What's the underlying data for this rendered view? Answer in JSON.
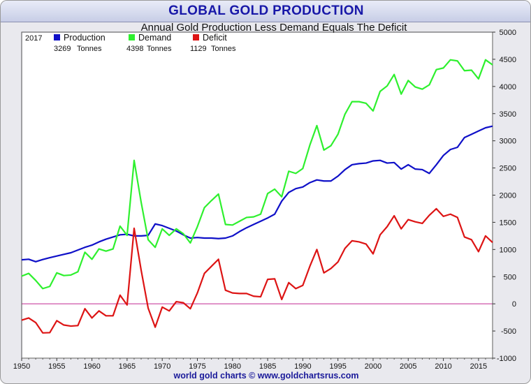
{
  "title": "GLOBAL GOLD PRODUCTION",
  "footer": "world gold charts © www.goldchartsrus.com",
  "chart_data": {
    "type": "line",
    "subtitle": "Annual Gold Production Less Demand Equals The Deficit",
    "legend": {
      "year": "2017",
      "entries": [
        {
          "name": "Production",
          "value": "3269",
          "unit": "Tonnes",
          "color": "#0f10c8"
        },
        {
          "name": "Demand",
          "value": "4398",
          "unit": "Tonnes",
          "color": "#2ef02e"
        },
        {
          "name": "Deficit",
          "value": "1129",
          "unit": "Tonnes",
          "color": "#dd1414"
        }
      ]
    },
    "xlim": [
      1950,
      2017
    ],
    "ylim": [
      -1000,
      5000
    ],
    "x_ticks": [
      "1950",
      "1955",
      "1960",
      "1965",
      "1970",
      "1975",
      "1980",
      "1985",
      "1990",
      "1995",
      "2000",
      "2005",
      "2010",
      "2015"
    ],
    "y_ticks": [
      "5000",
      "4500",
      "4000",
      "3500",
      "3000",
      "2500",
      "2000",
      "1500",
      "1000",
      "500",
      "0",
      "-500",
      "-1000"
    ],
    "zero_line_color": "#c02890",
    "x": [
      1950,
      1951,
      1952,
      1953,
      1954,
      1955,
      1956,
      1957,
      1958,
      1959,
      1960,
      1961,
      1962,
      1963,
      1964,
      1965,
      1966,
      1967,
      1968,
      1969,
      1970,
      1971,
      1972,
      1973,
      1974,
      1975,
      1976,
      1977,
      1978,
      1979,
      1980,
      1981,
      1982,
      1983,
      1984,
      1985,
      1986,
      1987,
      1988,
      1989,
      1990,
      1991,
      1992,
      1993,
      1994,
      1995,
      1996,
      1997,
      1998,
      1999,
      2000,
      2001,
      2002,
      2003,
      2004,
      2005,
      2006,
      2007,
      2008,
      2009,
      2010,
      2011,
      2012,
      2013,
      2014,
      2015,
      2016,
      2017
    ],
    "series": [
      {
        "name": "Production",
        "color": "#0f10c8",
        "values": [
          810,
          820,
          775,
          815,
          850,
          880,
          910,
          940,
          990,
          1040,
          1080,
          1140,
          1190,
          1230,
          1270,
          1280,
          1250,
          1250,
          1260,
          1470,
          1440,
          1390,
          1340,
          1270,
          1210,
          1220,
          1210,
          1210,
          1200,
          1210,
          1250,
          1330,
          1400,
          1460,
          1520,
          1580,
          1650,
          1890,
          2050,
          2120,
          2150,
          2230,
          2280,
          2260,
          2260,
          2350,
          2470,
          2560,
          2580,
          2590,
          2630,
          2640,
          2590,
          2600,
          2480,
          2560,
          2480,
          2470,
          2400,
          2560,
          2730,
          2840,
          2880,
          3060,
          3120,
          3180,
          3240,
          3269
        ]
      },
      {
        "name": "Demand",
        "color": "#2ef02e",
        "values": [
          510,
          560,
          430,
          280,
          320,
          570,
          520,
          530,
          590,
          950,
          820,
          1010,
          970,
          1010,
          1430,
          1260,
          2640,
          1870,
          1180,
          1040,
          1380,
          1260,
          1380,
          1290,
          1120,
          1420,
          1770,
          1900,
          2020,
          1460,
          1450,
          1520,
          1590,
          1600,
          1650,
          2030,
          2110,
          1970,
          2440,
          2400,
          2490,
          2920,
          3280,
          2830,
          2910,
          3120,
          3490,
          3720,
          3720,
          3690,
          3550,
          3910,
          4010,
          4220,
          3860,
          4110,
          3990,
          3950,
          4030,
          4310,
          4340,
          4490,
          4470,
          4290,
          4300,
          4140,
          4490,
          4398
        ]
      },
      {
        "name": "Deficit",
        "color": "#dd1414",
        "values": [
          -300,
          -260,
          -345,
          -535,
          -530,
          -310,
          -390,
          -410,
          -400,
          -90,
          -260,
          -130,
          -220,
          -220,
          160,
          -20,
          1390,
          620,
          -80,
          -430,
          -60,
          -130,
          40,
          20,
          -90,
          200,
          560,
          690,
          820,
          250,
          200,
          190,
          190,
          140,
          130,
          450,
          460,
          80,
          390,
          280,
          340,
          690,
          1000,
          570,
          650,
          770,
          1020,
          1160,
          1140,
          1100,
          920,
          1270,
          1420,
          1620,
          1380,
          1550,
          1510,
          1480,
          1630,
          1750,
          1610,
          1650,
          1590,
          1230,
          1180,
          960,
          1250,
          1129
        ]
      }
    ]
  }
}
